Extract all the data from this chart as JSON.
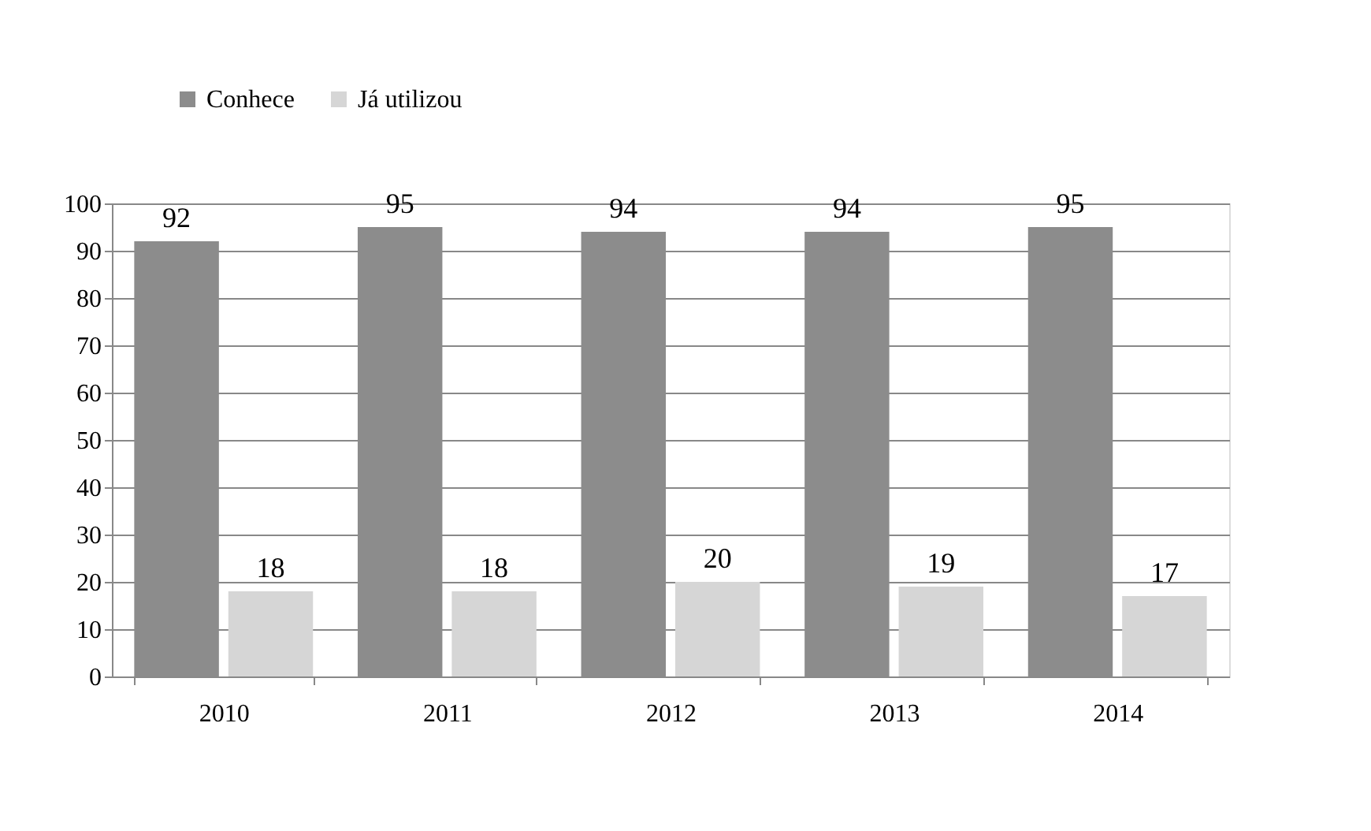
{
  "chart_data": {
    "type": "bar",
    "categories": [
      "2010",
      "2011",
      "2012",
      "2013",
      "2014"
    ],
    "series": [
      {
        "name": "Conhece",
        "color": "#8c8c8c",
        "values": [
          92,
          95,
          94,
          94,
          95
        ]
      },
      {
        "name": "Já utilizou",
        "color": "#d6d6d6",
        "values": [
          18,
          18,
          20,
          19,
          17
        ]
      }
    ],
    "ylim": [
      0,
      100
    ],
    "yticks": [
      0,
      10,
      20,
      30,
      40,
      50,
      60,
      70,
      80,
      90,
      100
    ],
    "grid": "y",
    "legend": "top",
    "data_labels": true
  }
}
